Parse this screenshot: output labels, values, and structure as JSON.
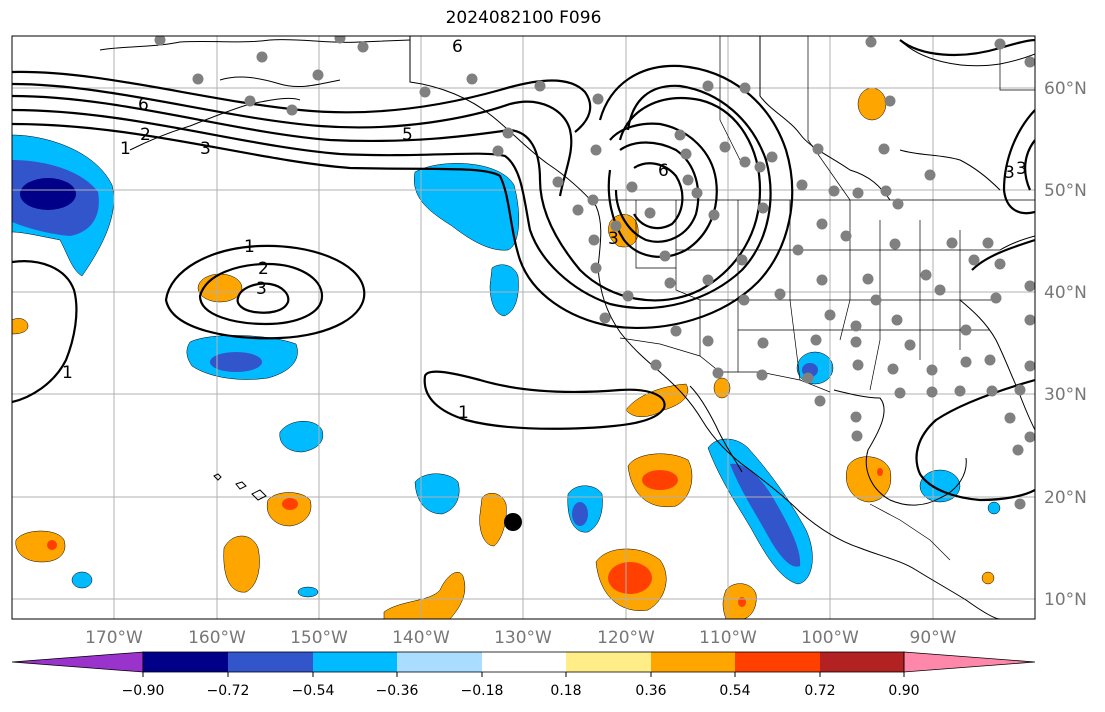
{
  "title": "2024082100 F096",
  "colors": {
    "purple": "#9933cc",
    "navy": "#000088",
    "royal": "#3355cc",
    "deep_sky": "#00bbff",
    "light_sky": "#aaddff",
    "yellow": "#ffee88",
    "orange": "#ffa500",
    "red_orange": "#ff4000",
    "firebrick": "#b22222",
    "pink": "#ff88aa",
    "station_dot": "#808080"
  },
  "map": {
    "lon_range": [
      -180,
      -80
    ],
    "lat_range": [
      8,
      65
    ],
    "lat_labels": [
      "10°N",
      "20°N",
      "30°N",
      "40°N",
      "50°N",
      "60°N"
    ],
    "lon_labels": [
      "170°W",
      "160°W",
      "150°W",
      "140°W",
      "130°W",
      "120°W",
      "110°W",
      "100°W",
      "90°W"
    ],
    "contour_labels": [
      "6",
      "6",
      "5",
      "3",
      "2",
      "1",
      "6",
      "3",
      "1",
      "2",
      "3",
      "1",
      "1",
      "3",
      "3"
    ]
  },
  "colorbar": {
    "tick_labels": [
      "−0.90",
      "−0.72",
      "−0.54",
      "−0.36",
      "−0.18",
      "0.18",
      "0.36",
      "0.54",
      "0.72",
      "0.90"
    ]
  }
}
